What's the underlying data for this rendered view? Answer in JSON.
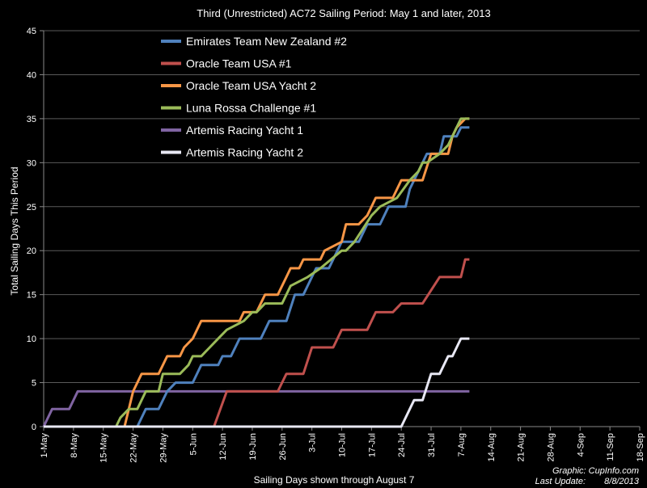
{
  "chart_data": {
    "type": "line",
    "title": "Third (Unrestricted) AC72 Sailing Period: May 1 and later, 2013",
    "xlabel": "Sailing Days shown through August 7",
    "ylabel": "Total Sailing Days This Period",
    "ylim": [
      0,
      45
    ],
    "yticks": [
      0,
      5,
      10,
      15,
      20,
      25,
      30,
      35,
      40,
      45
    ],
    "xlim_days": [
      0,
      140
    ],
    "xtick_labels": [
      "1-May",
      "8-May",
      "15-May",
      "22-May",
      "29-May",
      "5-Jun",
      "12-Jun",
      "19-Jun",
      "26-Jun",
      "3-Jul",
      "10-Jul",
      "17-Jul",
      "24-Jul",
      "31-Jul",
      "7-Aug",
      "14-Aug",
      "21-Aug",
      "28-Aug",
      "4-Sep",
      "11-Sep",
      "18-Sep"
    ],
    "grid": true,
    "legend_position": "top-left-inside",
    "series": [
      {
        "name": "Emirates Team New Zealand #2",
        "color": "#4f81bd",
        "points": [
          [
            22,
            0
          ],
          [
            24,
            2
          ],
          [
            27,
            2
          ],
          [
            29,
            4
          ],
          [
            31,
            5
          ],
          [
            35,
            5
          ],
          [
            37,
            7
          ],
          [
            41,
            7
          ],
          [
            42,
            8
          ],
          [
            44,
            8
          ],
          [
            46,
            10
          ],
          [
            51,
            10
          ],
          [
            53,
            12
          ],
          [
            57,
            12
          ],
          [
            59,
            15
          ],
          [
            61,
            15
          ],
          [
            64,
            18
          ],
          [
            67,
            18
          ],
          [
            70,
            21
          ],
          [
            74,
            21
          ],
          [
            76,
            23
          ],
          [
            79,
            23
          ],
          [
            81,
            25
          ],
          [
            85,
            25
          ],
          [
            86,
            27
          ],
          [
            88,
            29
          ],
          [
            90,
            31
          ],
          [
            93,
            31
          ],
          [
            94,
            33
          ],
          [
            97,
            33
          ],
          [
            98,
            34
          ],
          [
            100,
            34
          ]
        ]
      },
      {
        "name": "Oracle Team USA #1",
        "color": "#c0504d",
        "points": [
          [
            40,
            0
          ],
          [
            43,
            4
          ],
          [
            55,
            4
          ],
          [
            57,
            6
          ],
          [
            61,
            6
          ],
          [
            63,
            9
          ],
          [
            68,
            9
          ],
          [
            70,
            11
          ],
          [
            76,
            11
          ],
          [
            78,
            13
          ],
          [
            82,
            13
          ],
          [
            84,
            14
          ],
          [
            89,
            14
          ],
          [
            93,
            17
          ],
          [
            98,
            17
          ],
          [
            99,
            19
          ],
          [
            100,
            19
          ]
        ]
      },
      {
        "name": "Oracle Team USA Yacht 2",
        "color": "#f79646",
        "points": [
          [
            19,
            0
          ],
          [
            21,
            4
          ],
          [
            23,
            6
          ],
          [
            27,
            6
          ],
          [
            28,
            7
          ],
          [
            29,
            8
          ],
          [
            32,
            8
          ],
          [
            33,
            9
          ],
          [
            35,
            10
          ],
          [
            37,
            12
          ],
          [
            46,
            12
          ],
          [
            47,
            13
          ],
          [
            50,
            13
          ],
          [
            52,
            15
          ],
          [
            55,
            15
          ],
          [
            57,
            17
          ],
          [
            58,
            18
          ],
          [
            60,
            18
          ],
          [
            61,
            19
          ],
          [
            65,
            19
          ],
          [
            66,
            20
          ],
          [
            70,
            21
          ],
          [
            71,
            23
          ],
          [
            74,
            23
          ],
          [
            76,
            24
          ],
          [
            78,
            26
          ],
          [
            82,
            26
          ],
          [
            84,
            28
          ],
          [
            89,
            28
          ],
          [
            91,
            31
          ],
          [
            95,
            31
          ],
          [
            96,
            33
          ],
          [
            97,
            34
          ],
          [
            99,
            35
          ],
          [
            100,
            35
          ]
        ]
      },
      {
        "name": "Luna Rossa Challenge #1",
        "color": "#9bbb59",
        "points": [
          [
            17,
            0
          ],
          [
            18,
            1
          ],
          [
            20,
            2
          ],
          [
            22,
            2
          ],
          [
            24,
            4
          ],
          [
            27,
            4
          ],
          [
            28,
            6
          ],
          [
            32,
            6
          ],
          [
            34,
            7
          ],
          [
            35,
            8
          ],
          [
            37,
            8
          ],
          [
            39,
            9
          ],
          [
            41,
            10
          ],
          [
            43,
            11
          ],
          [
            47,
            12
          ],
          [
            49,
            13
          ],
          [
            50,
            13
          ],
          [
            52,
            14
          ],
          [
            56,
            14
          ],
          [
            58,
            16
          ],
          [
            62,
            17
          ],
          [
            65,
            18
          ],
          [
            70,
            20
          ],
          [
            71,
            20
          ],
          [
            73,
            21
          ],
          [
            77,
            24
          ],
          [
            79,
            25
          ],
          [
            83,
            26
          ],
          [
            86,
            28
          ],
          [
            88,
            29
          ],
          [
            89,
            30
          ],
          [
            90,
            30
          ],
          [
            93,
            31
          ],
          [
            95,
            32
          ],
          [
            97,
            34
          ],
          [
            98,
            35
          ],
          [
            100,
            35
          ]
        ]
      },
      {
        "name": "Artemis Racing Yacht 1",
        "color": "#8064a2",
        "points": [
          [
            0,
            0
          ],
          [
            2,
            2
          ],
          [
            6,
            2
          ],
          [
            8,
            4
          ],
          [
            100,
            4
          ]
        ]
      },
      {
        "name": "Artemis Racing Yacht 2",
        "color": "#e8e8f4",
        "points": [
          [
            0,
            0
          ],
          [
            84,
            0
          ],
          [
            87,
            3
          ],
          [
            89,
            3
          ],
          [
            91,
            6
          ],
          [
            93,
            6
          ],
          [
            95,
            8
          ],
          [
            96,
            8
          ],
          [
            98,
            10
          ],
          [
            100,
            10
          ]
        ]
      }
    ]
  },
  "footer": {
    "credit": "Graphic: CupInfo.com",
    "update_label": "Last Update:",
    "update_date": "8/8/2013"
  }
}
